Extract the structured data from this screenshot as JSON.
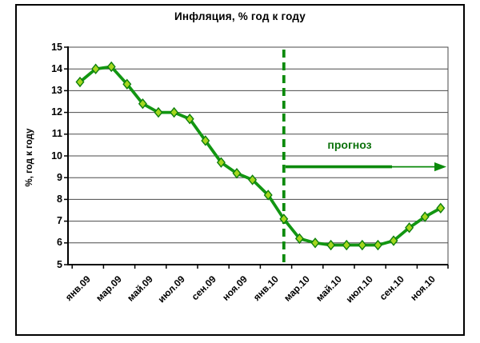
{
  "window": {
    "background_color": "#ffffff",
    "frame_border_color": "#000000"
  },
  "chart_data": {
    "type": "line",
    "title": "Инфляция, % год к году",
    "ylabel": "%, год к году",
    "xlabel": "",
    "ylim": [
      5,
      15
    ],
    "ytick_step": 1,
    "ytick_labels": [
      "15",
      "14",
      "13",
      "12",
      "11",
      "10",
      "9",
      "8",
      "7",
      "6",
      "5"
    ],
    "grid": "horizontal",
    "legend_position": "none",
    "categories": [
      "янв.09",
      "фев.09",
      "мар.09",
      "апр.09",
      "май.09",
      "июн.09",
      "июл.09",
      "авг.09",
      "сен.09",
      "окт.09",
      "ноя.09",
      "дек.09",
      "янв.10",
      "фев.10",
      "мар.10",
      "апр.10",
      "май.10",
      "июн.10",
      "июл.10",
      "авг.10",
      "сен.10",
      "окт.10",
      "ноя.10",
      "дек.10"
    ],
    "x_tick_labels": [
      "янв.09",
      "мар.09",
      "май.09",
      "июл.09",
      "сен.09",
      "ноя.09",
      "янв.10",
      "мар.10",
      "май.10",
      "июл.10",
      "сен.10",
      "ноя.10"
    ],
    "series": [
      {
        "values": [
          13.4,
          14.0,
          14.1,
          13.3,
          12.4,
          12.0,
          12.0,
          11.7,
          10.7,
          9.7,
          9.2,
          8.9,
          8.2,
          7.1,
          6.2,
          6.0,
          5.9,
          5.9,
          5.9,
          5.9,
          6.1,
          6.7,
          7.2,
          7.6
        ],
        "line_color": "#129612",
        "marker": "diamond",
        "marker_fill": "#a4d71e",
        "marker_stroke": "#0d7f0d"
      }
    ],
    "annotations": {
      "forecast_divider": {
        "style": "dashed-vertical-line",
        "at_category": "фев.10",
        "color": "#0b8a0b"
      },
      "forecast_arrow": {
        "label": "прогноз",
        "label_color": "#0c720c",
        "arrow_color": "#0b8a0b",
        "y_value": 9.5,
        "from_category": "фев.10",
        "to_category": "дек.10"
      }
    }
  }
}
